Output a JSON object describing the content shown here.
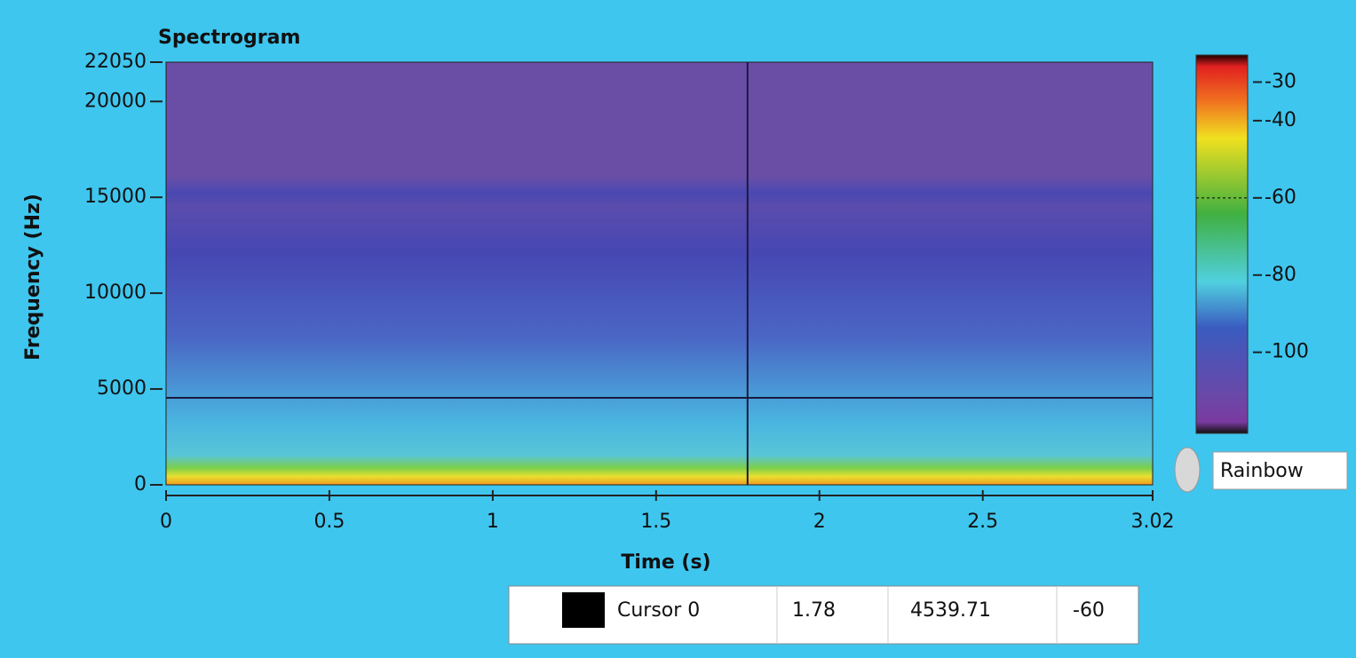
{
  "chart_data": {
    "type": "spectrogram",
    "title": "Spectrogram",
    "x_label": "Time (s)",
    "y_label": "Frequency (Hz)",
    "xlim": [
      0,
      3.02
    ],
    "xticks": [
      0,
      0.5,
      1,
      1.5,
      2,
      2.5,
      3.02
    ],
    "ylim": [
      0,
      22050
    ],
    "yticks": [
      0,
      5000,
      10000,
      15000,
      20000,
      22050
    ],
    "zlim": [
      -121,
      -23
    ],
    "zticks": [
      -30,
      -40,
      -60,
      -80,
      -100
    ],
    "colormap": "Rainbow",
    "cursor": {
      "name": "Cursor 0",
      "x": 1.78,
      "y": 4539.71,
      "value": -60,
      "color": "#000000"
    }
  }
}
